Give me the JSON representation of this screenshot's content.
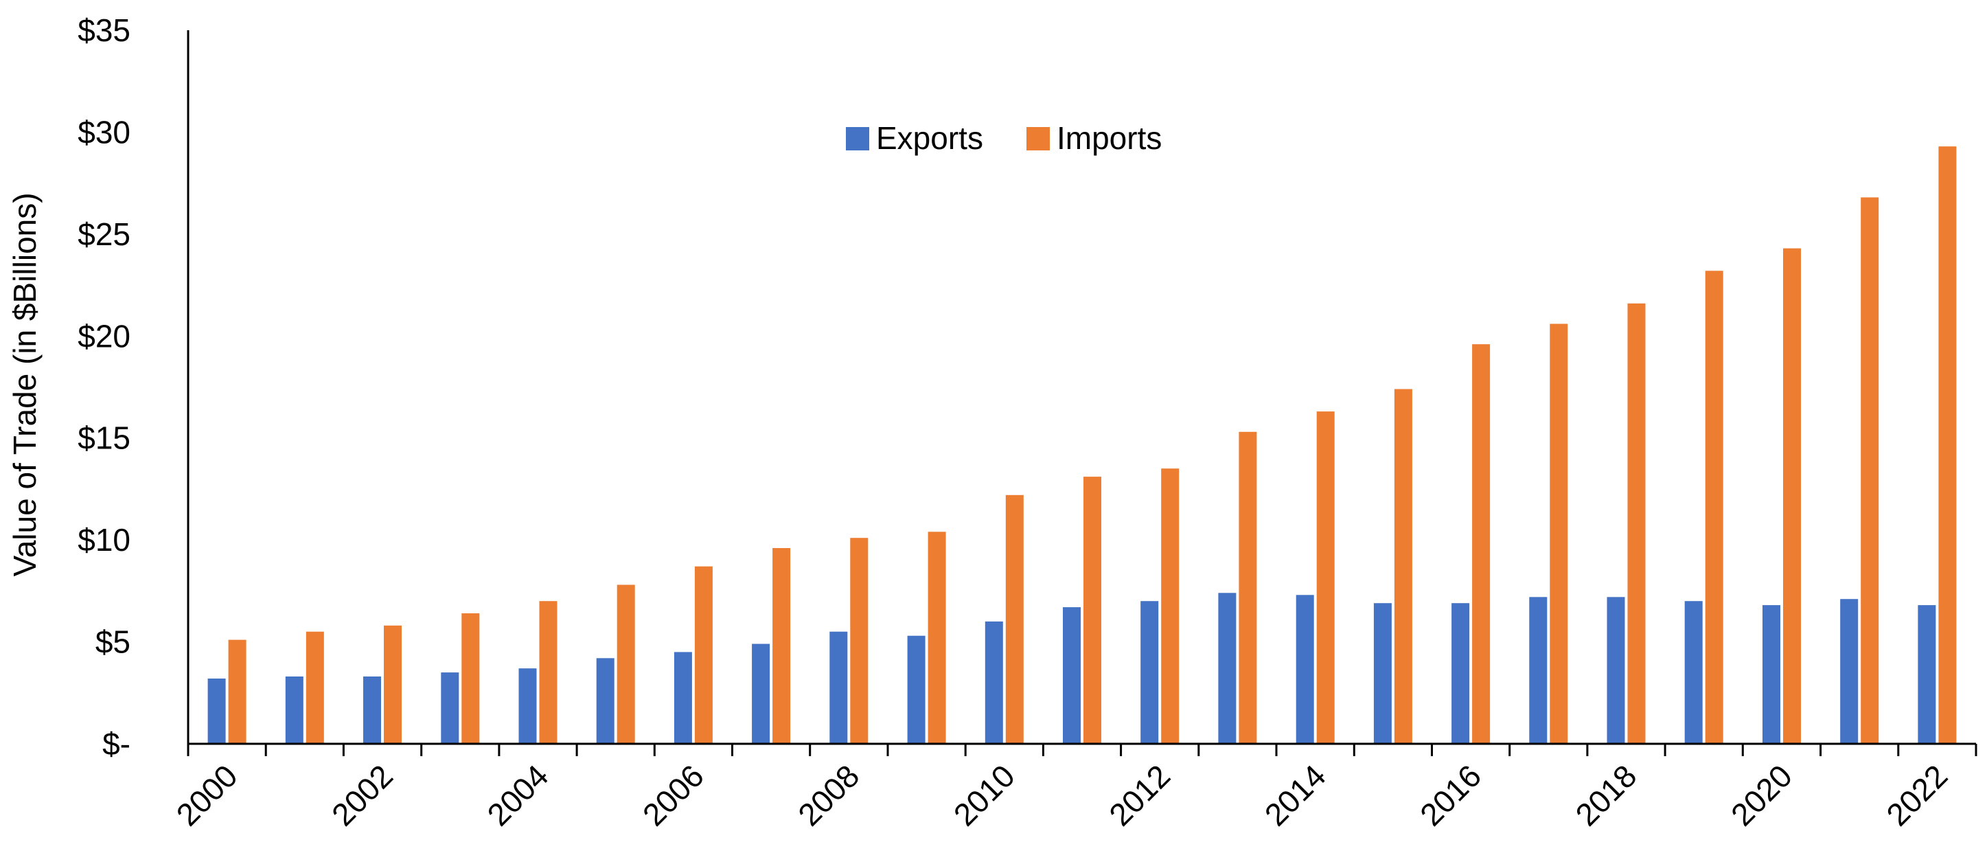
{
  "chart_data": {
    "type": "bar",
    "title": "",
    "xlabel": "",
    "ylabel": "Value of Trade (in $Billions)",
    "ylim": [
      0,
      35
    ],
    "y_ticks": [
      {
        "value": 0,
        "label": "$-"
      },
      {
        "value": 5,
        "label": "$5"
      },
      {
        "value": 10,
        "label": "$10"
      },
      {
        "value": 15,
        "label": "$15"
      },
      {
        "value": 20,
        "label": "$20"
      },
      {
        "value": 25,
        "label": "$25"
      },
      {
        "value": 30,
        "label": "$30"
      },
      {
        "value": 35,
        "label": "$35"
      }
    ],
    "categories": [
      "2000",
      "2001",
      "2002",
      "2003",
      "2004",
      "2005",
      "2006",
      "2007",
      "2008",
      "2009",
      "2010",
      "2011",
      "2012",
      "2013",
      "2014",
      "2015",
      "2016",
      "2017",
      "2018",
      "2019",
      "2020",
      "2021",
      "2022"
    ],
    "x_tick_labels": [
      "2000",
      "",
      "2002",
      "",
      "2004",
      "",
      "2006",
      "",
      "2008",
      "",
      "2010",
      "",
      "2012",
      "",
      "2014",
      "",
      "2016",
      "",
      "2018",
      "",
      "2020",
      "",
      "2022"
    ],
    "grid": false,
    "legend_position": "top-center",
    "series": [
      {
        "name": "Exports",
        "color": "#4472C4",
        "values": [
          3.2,
          3.3,
          3.3,
          3.5,
          3.7,
          4.2,
          4.5,
          4.9,
          5.5,
          5.3,
          6.0,
          6.7,
          7.0,
          7.4,
          7.3,
          6.9,
          6.9,
          7.2,
          7.2,
          7.0,
          6.8,
          7.1,
          6.8
        ]
      },
      {
        "name": "Imports",
        "color": "#ED7D31",
        "values": [
          5.1,
          5.5,
          5.8,
          6.4,
          7.0,
          7.8,
          8.7,
          9.6,
          10.1,
          10.4,
          12.2,
          13.1,
          13.5,
          15.3,
          16.3,
          17.4,
          19.6,
          20.6,
          21.6,
          23.2,
          24.3,
          26.8,
          29.3
        ]
      }
    ]
  }
}
